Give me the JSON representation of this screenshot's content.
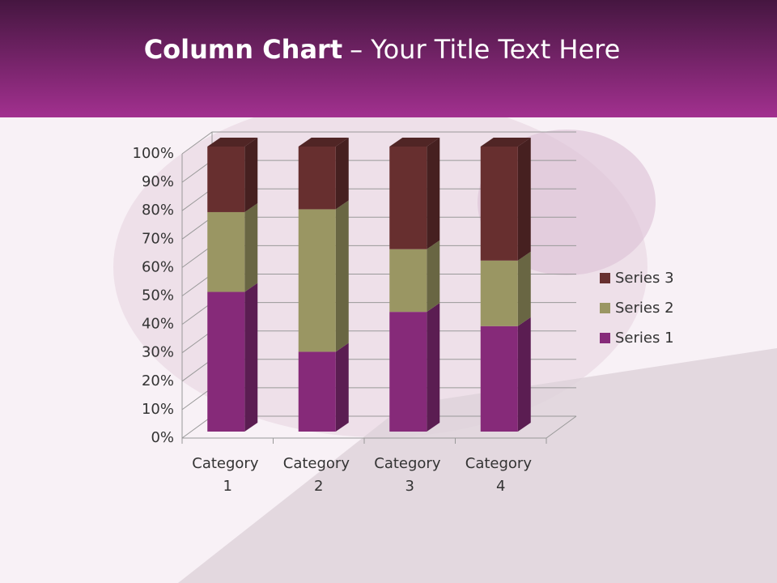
{
  "chart_data": {
    "type": "stacked_bar_3d",
    "title": {
      "bold": "Column Chart",
      "rest": "– Your Title Text Here"
    },
    "categories": [
      "Category 1",
      "Category 2",
      "Category 3",
      "Category 4"
    ],
    "series": [
      {
        "name": "Series 1",
        "color": "#862a79",
        "values": [
          49,
          28,
          42,
          37
        ]
      },
      {
        "name": "Series 2",
        "color": "#9a9663",
        "values": [
          28,
          50,
          22,
          23
        ]
      },
      {
        "name": "Series 3",
        "color": "#672f2f",
        "values": [
          23,
          22,
          36,
          40
        ]
      }
    ],
    "ylim": [
      0,
      100
    ],
    "yticks": [
      {
        "value": 0,
        "label": "0%"
      },
      {
        "value": 10,
        "label": "10%"
      },
      {
        "value": 20,
        "label": "20%"
      },
      {
        "value": 30,
        "label": "30%"
      },
      {
        "value": 40,
        "label": "40%"
      },
      {
        "value": 50,
        "label": "50%"
      },
      {
        "value": 60,
        "label": "60%"
      },
      {
        "value": 70,
        "label": "70%"
      },
      {
        "value": 80,
        "label": "80%"
      },
      {
        "value": 90,
        "label": "90%"
      },
      {
        "value": 100,
        "label": "100%"
      }
    ],
    "grid": true,
    "legend": "right"
  }
}
